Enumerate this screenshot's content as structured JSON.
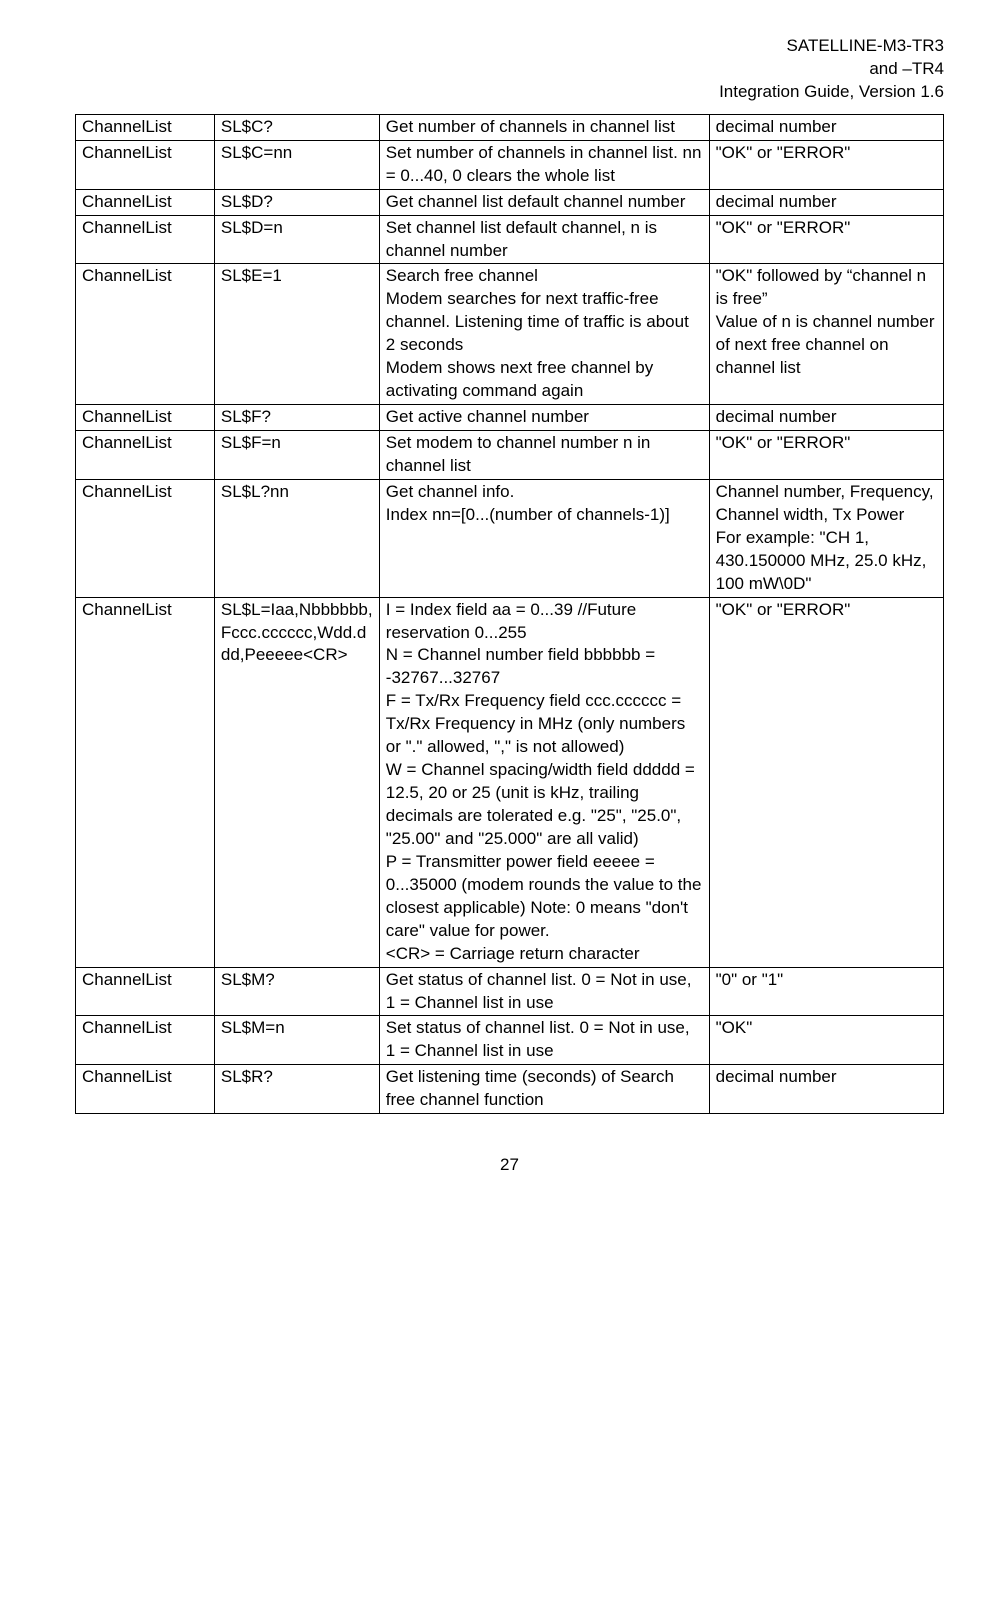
{
  "header": {
    "line1": "SATELLINE-M3-TR3",
    "line2": "and –TR4",
    "line3": "Integration Guide, Version 1.6"
  },
  "table": {
    "rows": [
      {
        "c1": "ChannelList",
        "c2": "SL$C?",
        "c3": "Get number of channels in channel list",
        "c4": "decimal number"
      },
      {
        "c1": "ChannelList",
        "c2": "SL$C=nn",
        "c3": "Set number of channels in channel list.  nn = 0...40, 0 clears the whole list",
        "c4": "\"OK\" or \"ERROR\""
      },
      {
        "c1": "ChannelList",
        "c2": "SL$D?",
        "c3": "Get channel list default channel number",
        "c4": "decimal number"
      },
      {
        "c1": "ChannelList",
        "c2": "SL$D=n",
        "c3": "Set channel list default channel, n is channel number",
        "c4": "\"OK\" or \"ERROR\""
      },
      {
        "c1": "ChannelList",
        "c2": "SL$E=1",
        "c3": "Search free channel\nModem searches for next traffic-free channel. Listening time of traffic is about 2 seconds\nModem shows next free channel by activating command again",
        "c4": "\"OK\" followed by “channel n is free”\nValue of n is channel number of next free channel on channel list"
      },
      {
        "c1": "ChannelList",
        "c2": "SL$F?",
        "c3": "Get active channel number",
        "c4": "decimal number"
      },
      {
        "c1": "ChannelList",
        "c2": "SL$F=n",
        "c3": "Set modem to channel number n in channel list",
        "c4": "\"OK\" or \"ERROR\""
      },
      {
        "c1": "ChannelList",
        "c2": "SL$L?nn",
        "c3": "Get channel info.\nIndex nn=[0...(number of channels-1)]",
        "c4": "Channel number, Frequency, Channel width, Tx Power\nFor example: \"CH 1, 430.150000 MHz, 25.0 kHz, 100 mW\\0D\""
      },
      {
        "c1": "ChannelList",
        "c2": "SL$L=Iaa,Nbbbbbb,Fccc.cccccc,Wdd.ddd,Peeeee<CR>",
        "c3": "I = Index field aa = 0...39 //Future reservation 0...255\nN = Channel number field bbbbbb = -32767...32767\nF = Tx/Rx Frequency field ccc.cccccc = Tx/Rx Frequency in MHz (only numbers or \".\" allowed, \",\" is not allowed)\nW = Channel spacing/width field ddddd = 12.5, 20 or 25 (unit is kHz, trailing decimals are tolerated e.g. \"25\", \"25.0\", \"25.00\" and \"25.000\" are all valid)\nP = Transmitter power field eeeee = 0...35000 (modem rounds the value to the closest applicable) Note: 0 means \"don't care\" value for power.\n<CR> = Carriage return character",
        "c4": "\"OK\" or \"ERROR\""
      },
      {
        "c1": "ChannelList",
        "c2": "SL$M?",
        "c3": "Get status of channel list. 0 = Not in use, 1 = Channel list in use",
        "c4": "\"0\" or \"1\""
      },
      {
        "c1": "ChannelList",
        "c2": "SL$M=n",
        "c3": "Set status of channel list. 0 = Not in use, 1 = Channel list in use",
        "c4": "\"OK\""
      },
      {
        "c1": "ChannelList",
        "c2": "SL$R?",
        "c3": "Get listening time (seconds) of Search free channel function",
        "c4": "decimal number"
      }
    ]
  },
  "page_number": "27"
}
